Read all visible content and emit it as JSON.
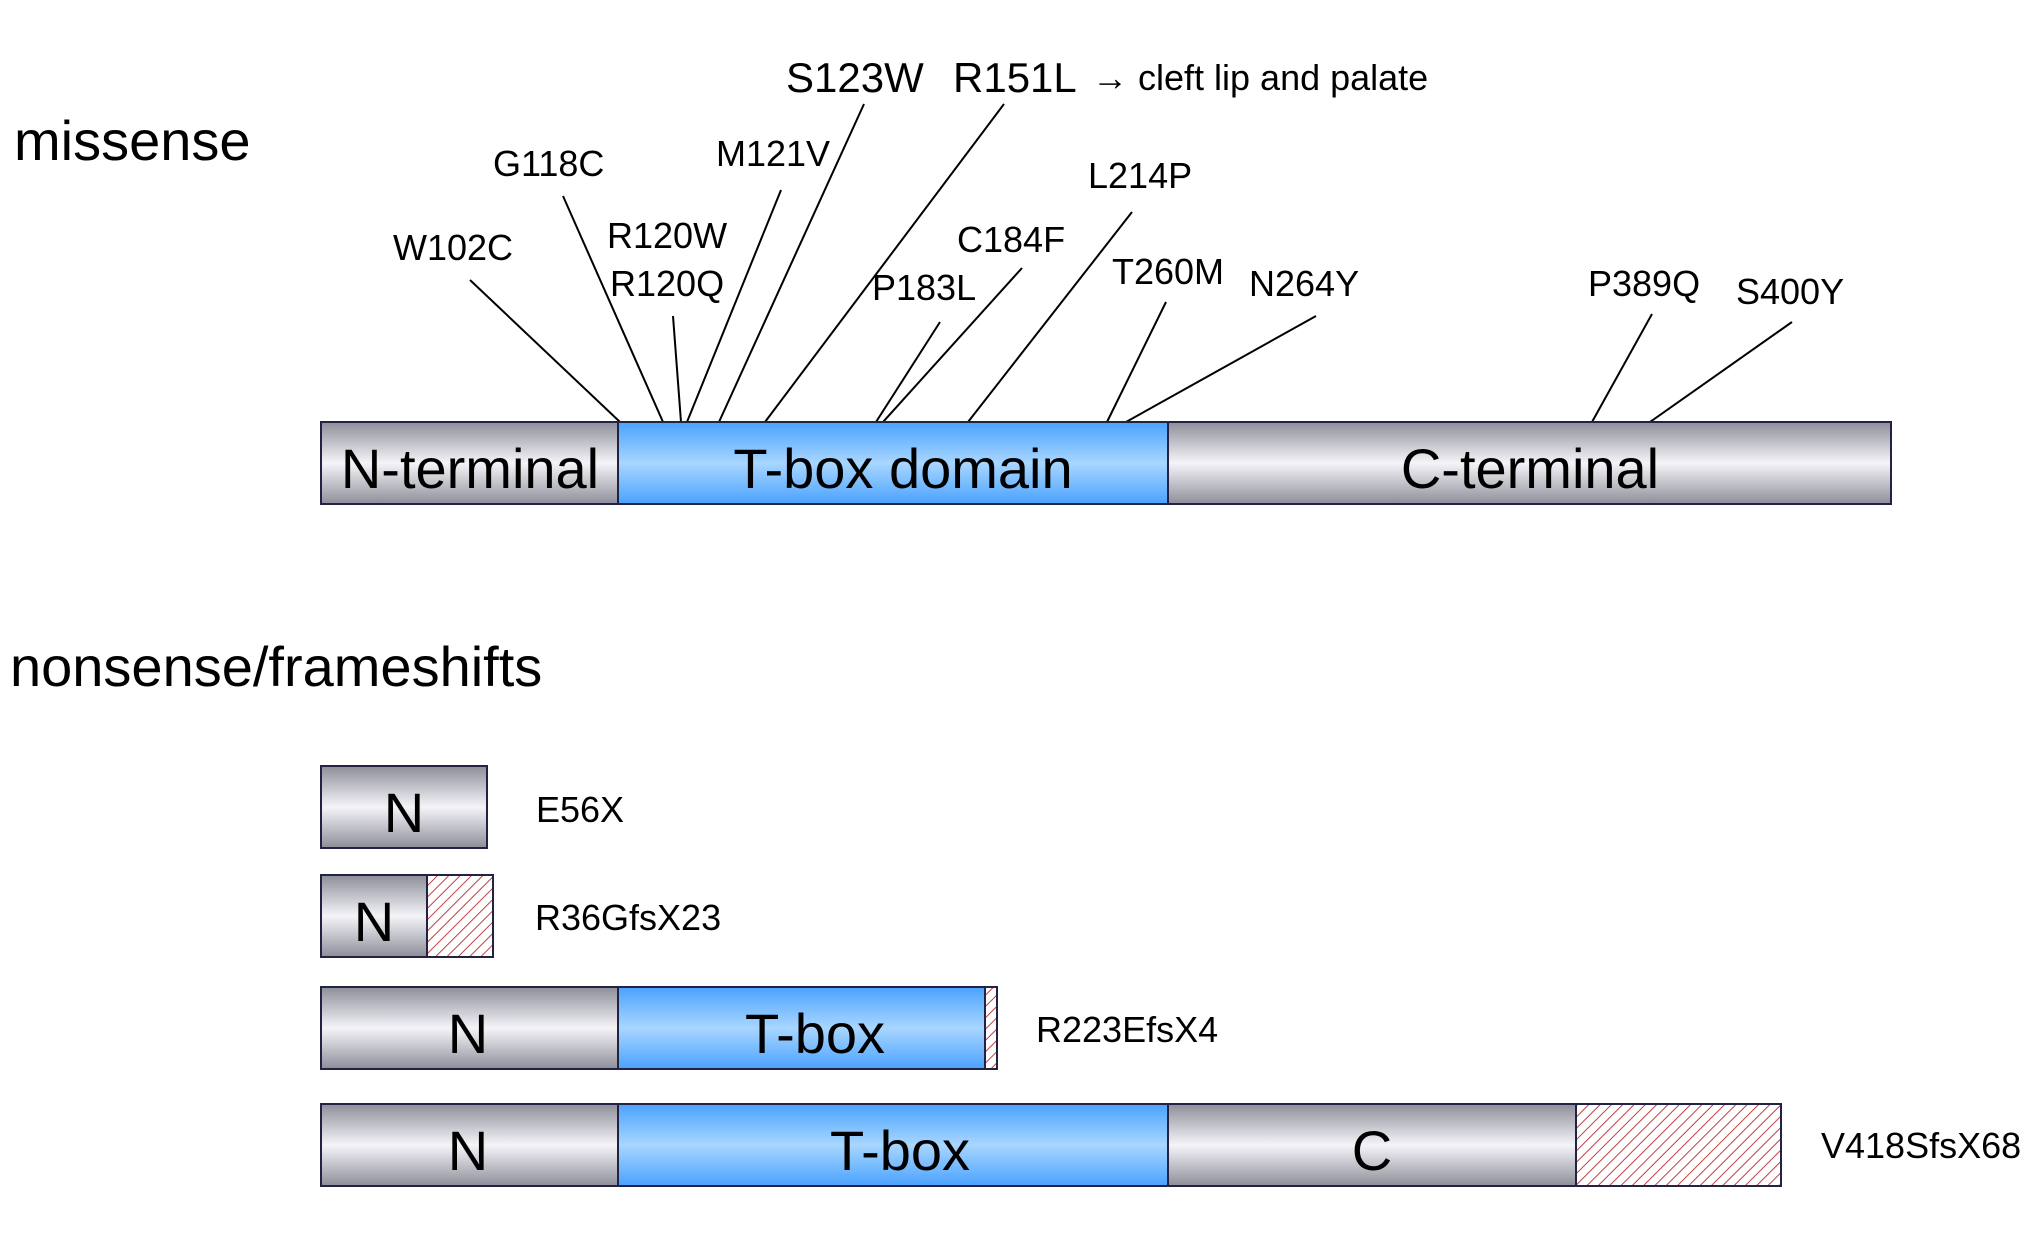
{
  "missense": {
    "title": "missense",
    "domains": {
      "n_terminal": "N-terminal",
      "t_box": "T-box domain",
      "c_terminal": "C-terminal"
    },
    "mutations": [
      "W102C",
      "G118C",
      "R120W",
      "R120Q",
      "M121V",
      "S123W",
      "R151L",
      "P183L",
      "C184F",
      "L214P",
      "T260M",
      "N264Y",
      "P389Q",
      "S400Y"
    ],
    "annotation": "→ cleft lip and palate"
  },
  "truncating": {
    "title": "nonsense/frameshifts",
    "domain_short": {
      "n": "N",
      "t_box": "T-box",
      "c": "C"
    },
    "variants": [
      "E56X",
      "R36GfsX23",
      "R223EfsX4",
      "V418SfsX68"
    ]
  },
  "colors": {
    "grey_domain": "#b0b0bc",
    "tbox_domain": "#64b4ff",
    "frameshift_hatch": "#c04040",
    "outline": "#222244"
  }
}
